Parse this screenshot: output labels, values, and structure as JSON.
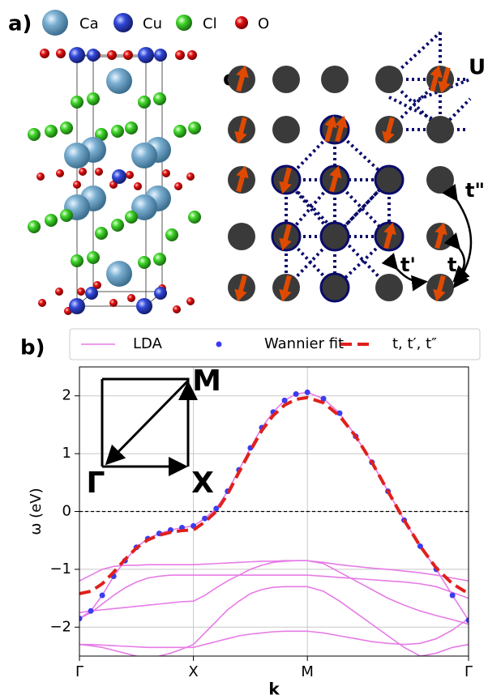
{
  "panel_a": {
    "label": "a)",
    "legend": [
      "Ca",
      "Cu",
      "Cl",
      "O"
    ]
  },
  "panel_c": {
    "label": "c)",
    "annotations": [
      "U",
      "t\"",
      "t'",
      "t"
    ]
  },
  "chart_data": {
    "type": "line",
    "panel_label": "b)",
    "xlabel": "k",
    "ylabel": "ω (eV)",
    "x": [
      0,
      0.1,
      0.2,
      0.3,
      0.4,
      0.5,
      0.6,
      0.7,
      0.8,
      0.9,
      1.0,
      1.1,
      1.2,
      1.3,
      1.4,
      1.5,
      1.6,
      1.7,
      1.8,
      1.9,
      2.0,
      2.141,
      2.283,
      2.424,
      2.566,
      2.707,
      2.849,
      2.99,
      3.131,
      3.273,
      3.414
    ],
    "xlim": [
      0,
      3.414
    ],
    "xticks": [
      {
        "value": 0,
        "label": "Γ"
      },
      {
        "value": 1,
        "label": "X"
      },
      {
        "value": 2,
        "label": "M"
      },
      {
        "value": 3.414,
        "label": "Γ"
      }
    ],
    "ylim": [
      -2.5,
      2.5
    ],
    "yticks": [
      {
        "value": -2,
        "label": "−2"
      },
      {
        "value": -1,
        "label": "−1"
      },
      0,
      1,
      2
    ],
    "grid": true,
    "reference_line": 0,
    "legend_position": "top",
    "inset_labels": [
      "M",
      "Γ",
      "X"
    ],
    "series": [
      {
        "name": "LDA",
        "color": "#e67ce6",
        "style": "solid",
        "values": [
          -1.85,
          -1.72,
          -1.45,
          -1.12,
          -0.85,
          -0.62,
          -0.47,
          -0.38,
          -0.32,
          -0.28,
          -0.25,
          -0.12,
          0.05,
          0.35,
          0.72,
          1.1,
          1.45,
          1.72,
          1.92,
          2.03,
          2.06,
          1.95,
          1.7,
          1.3,
          0.85,
          0.35,
          -0.15,
          -0.6,
          -1.0,
          -1.45,
          -1.88
        ]
      },
      {
        "color": "#e67ce6",
        "style": "solid",
        "values": [
          -1.2,
          -1.1,
          -1.0,
          -0.95,
          -0.93,
          -0.93,
          -0.92,
          -0.92,
          -0.92,
          -0.92,
          -0.92,
          -0.91,
          -0.9,
          -0.89,
          -0.88,
          -0.87,
          -0.86,
          -0.86,
          -0.85,
          -0.85,
          -0.85,
          -0.88,
          -0.92,
          -0.95,
          -0.98,
          -1.0,
          -1.03,
          -1.06,
          -1.1,
          -1.15,
          -1.2
        ]
      },
      {
        "color": "#e67ce6",
        "style": "solid",
        "values": [
          -1.75,
          -1.72,
          -1.7,
          -1.68,
          -1.66,
          -1.64,
          -1.62,
          -1.6,
          -1.58,
          -1.56,
          -1.55,
          -1.45,
          -1.32,
          -1.2,
          -1.1,
          -1.0,
          -0.93,
          -0.88,
          -0.86,
          -0.85,
          -0.85,
          -0.9,
          -1.05,
          -1.2,
          -1.35,
          -1.5,
          -1.62,
          -1.72,
          -1.8,
          -1.87,
          -1.95
        ]
      },
      {
        "color": "#e67ce6",
        "style": "solid",
        "values": [
          -1.85,
          -1.75,
          -1.6,
          -1.45,
          -1.32,
          -1.22,
          -1.15,
          -1.12,
          -1.1,
          -1.1,
          -1.1,
          -1.1,
          -1.1,
          -1.1,
          -1.1,
          -1.1,
          -1.1,
          -1.1,
          -1.1,
          -1.1,
          -1.1,
          -1.12,
          -1.14,
          -1.16,
          -1.18,
          -1.2,
          -1.22,
          -1.25,
          -1.3,
          -1.4,
          -1.5
        ]
      },
      {
        "color": "#e67ce6",
        "style": "solid",
        "values": [
          -2.3,
          -2.32,
          -2.35,
          -2.4,
          -2.45,
          -2.5,
          -2.55,
          -2.5,
          -2.45,
          -2.38,
          -2.3,
          -2.1,
          -1.9,
          -1.7,
          -1.55,
          -1.42,
          -1.35,
          -1.31,
          -1.3,
          -1.3,
          -1.3,
          -1.38,
          -1.55,
          -1.75,
          -1.95,
          -2.15,
          -2.35,
          -2.5,
          -2.45,
          -2.35,
          -2.3
        ]
      },
      {
        "color": "#e67ce6",
        "style": "solid",
        "values": [
          -2.3,
          -2.3,
          -2.31,
          -2.32,
          -2.33,
          -2.34,
          -2.35,
          -2.35,
          -2.35,
          -2.35,
          -2.35,
          -2.3,
          -2.25,
          -2.2,
          -2.15,
          -2.12,
          -2.1,
          -2.08,
          -2.07,
          -2.07,
          -2.07,
          -2.1,
          -2.15,
          -2.2,
          -2.25,
          -2.28,
          -2.3,
          -2.28,
          -2.2,
          -2.05,
          -1.85
        ]
      },
      {
        "name": "Wannier fit",
        "color": "#3c3cf0",
        "style": "dots",
        "values": [
          -1.85,
          -1.72,
          -1.45,
          -1.12,
          -0.85,
          -0.62,
          -0.47,
          -0.38,
          -0.32,
          -0.28,
          -0.25,
          -0.12,
          0.05,
          0.35,
          0.72,
          1.1,
          1.45,
          1.72,
          1.92,
          2.03,
          2.06,
          1.95,
          1.7,
          1.3,
          0.85,
          0.35,
          -0.15,
          -0.6,
          -1.0,
          -1.45,
          -1.88
        ]
      },
      {
        "name": "t, t′, t″",
        "color": "#e0201b",
        "style": "dashed",
        "values": [
          -1.42,
          -1.38,
          -1.25,
          -1.05,
          -0.83,
          -0.63,
          -0.49,
          -0.41,
          -0.36,
          -0.33,
          -0.32,
          -0.18,
          0.0,
          0.3,
          0.68,
          1.05,
          1.4,
          1.66,
          1.84,
          1.94,
          1.97,
          1.88,
          1.65,
          1.3,
          0.85,
          0.35,
          -0.15,
          -0.6,
          -0.98,
          -1.25,
          -1.42
        ]
      }
    ]
  }
}
